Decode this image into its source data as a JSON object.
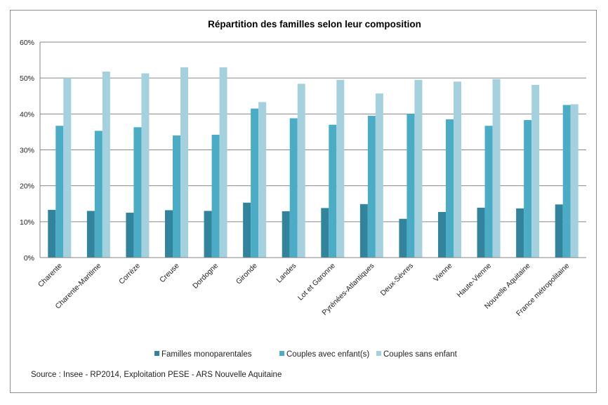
{
  "chart_data": {
    "type": "bar",
    "title": "Répartition des familles selon leur composition",
    "xlabel": "",
    "ylabel": "",
    "ylim": [
      0,
      60
    ],
    "yticks": [
      "0%",
      "10%",
      "20%",
      "30%",
      "40%",
      "50%",
      "60%"
    ],
    "grid": true,
    "legend_position": "bottom",
    "categories": [
      "Charente",
      "Charente-Maritime",
      "Corrèze",
      "Creuse",
      "Dordogne",
      "Gironde",
      "Landes",
      "Lot et Garonne",
      "Pyrénées-Atlantiques",
      "Deux-Sèvres",
      "Vienne",
      "Haute-Vienne",
      "Nouvelle Aquitaine",
      "France métropolitaine"
    ],
    "series": [
      {
        "name": "Familles monoparentales",
        "color": "#31849b",
        "values": [
          13.3,
          13.0,
          12.5,
          13.2,
          13.0,
          15.3,
          12.9,
          13.8,
          14.9,
          10.8,
          12.7,
          13.9,
          13.7,
          14.8
        ]
      },
      {
        "name": "Couples avec enfant(s)",
        "color": "#4bacc6",
        "values": [
          36.7,
          35.3,
          36.3,
          34.0,
          34.2,
          41.5,
          38.8,
          37.0,
          39.5,
          40.0,
          38.5,
          36.7,
          38.3,
          42.5
        ]
      },
      {
        "name": "Couples sans enfant",
        "color": "#a5d1df",
        "values": [
          50.0,
          51.8,
          51.3,
          53.0,
          53.0,
          43.3,
          48.4,
          49.5,
          45.7,
          49.5,
          49.0,
          49.7,
          48.1,
          42.7
        ]
      }
    ]
  },
  "source": "Source : Insee - RP2014, Exploitation PESE - ARS Nouvelle Aquitaine"
}
